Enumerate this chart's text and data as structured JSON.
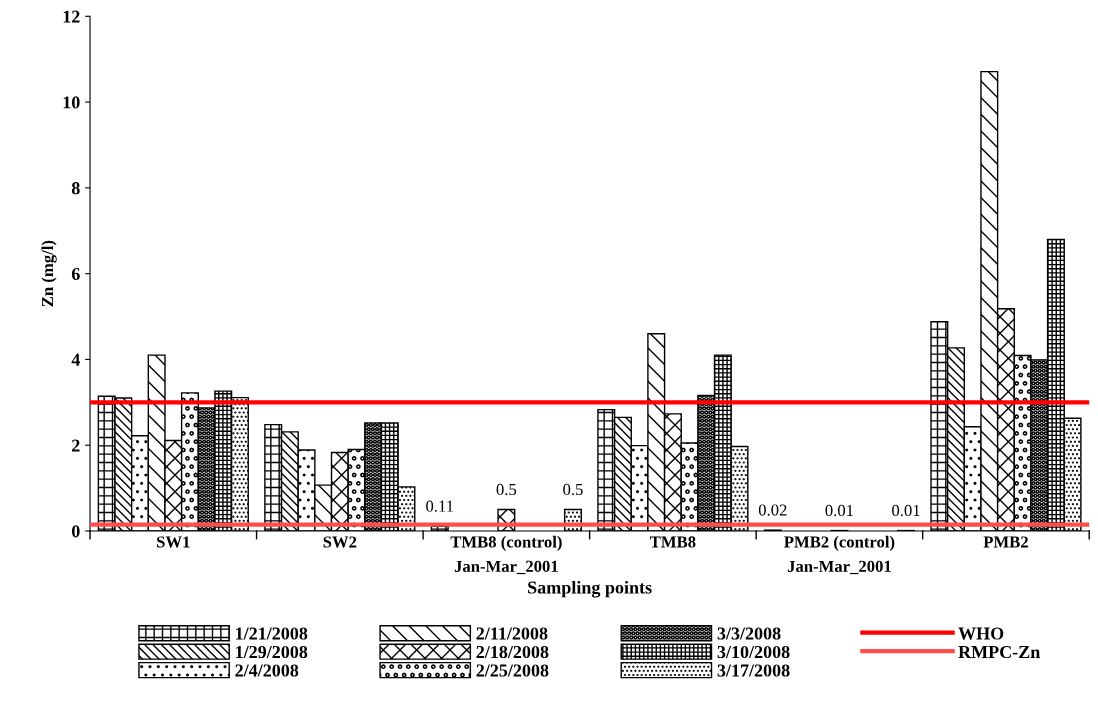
{
  "chart_data": {
    "type": "bar",
    "xlabel": "Sampling points",
    "ylabel": "Zn (mg/l)",
    "categories": [
      "SW1",
      "SW2",
      "TMB8 (control)\nJan-Mar_2001",
      "TMB8",
      "PMB2 (control)\nJan-Mar_2001",
      "PMB2"
    ],
    "series": [
      {
        "name": "1/21/2008",
        "color": "#000000",
        "values": [
          3.14,
          2.48,
          0.11,
          2.83,
          0.02,
          4.88
        ],
        "value_labels": [
          null,
          null,
          "0.11",
          null,
          "0.02",
          null
        ]
      },
      {
        "name": "1/29/2008",
        "color": "#000000",
        "values": [
          3.1,
          2.31,
          null,
          2.65,
          null,
          4.27
        ]
      },
      {
        "name": "2/4/2008",
        "color": "#000000",
        "values": [
          2.22,
          1.89,
          null,
          1.99,
          null,
          2.43
        ]
      },
      {
        "name": "2/11/2008",
        "color": "#000000",
        "values": [
          4.1,
          1.07,
          null,
          4.6,
          null,
          10.71
        ]
      },
      {
        "name": "2/18/2008",
        "color": "#000000",
        "values": [
          2.11,
          1.83,
          0.5,
          2.73,
          0.01,
          5.18
        ],
        "value_labels": [
          null,
          null,
          "0.5",
          null,
          "0.01",
          null
        ]
      },
      {
        "name": "2/25/2008",
        "color": "#000000",
        "values": [
          3.22,
          1.9,
          null,
          2.05,
          null,
          4.09
        ]
      },
      {
        "name": "3/3/2008",
        "color": "#000000",
        "values": [
          2.87,
          2.52,
          null,
          3.16,
          null,
          3.99
        ]
      },
      {
        "name": "3/10/2008",
        "color": "#000000",
        "values": [
          3.26,
          2.52,
          null,
          4.1,
          null,
          6.8
        ]
      },
      {
        "name": "3/17/2008",
        "color": "#000000",
        "values": [
          3.11,
          1.03,
          0.5,
          1.97,
          0.01,
          2.63
        ],
        "value_labels": [
          null,
          null,
          "0.5",
          null,
          "0.01",
          null
        ]
      }
    ],
    "ref_lines": [
      {
        "axis": "y",
        "value": 3,
        "label": "WHO",
        "color": "#ff0000",
        "line_style": "solid"
      },
      {
        "axis": "y",
        "value": 0.15,
        "label": "RMPC-Zn",
        "color": "#ff4d4d",
        "line_style": "solid"
      }
    ],
    "ylim": [
      0,
      12
    ],
    "yticks": [
      0,
      2,
      4,
      6,
      8,
      10,
      12
    ],
    "grid": false,
    "legend": "bottom"
  }
}
